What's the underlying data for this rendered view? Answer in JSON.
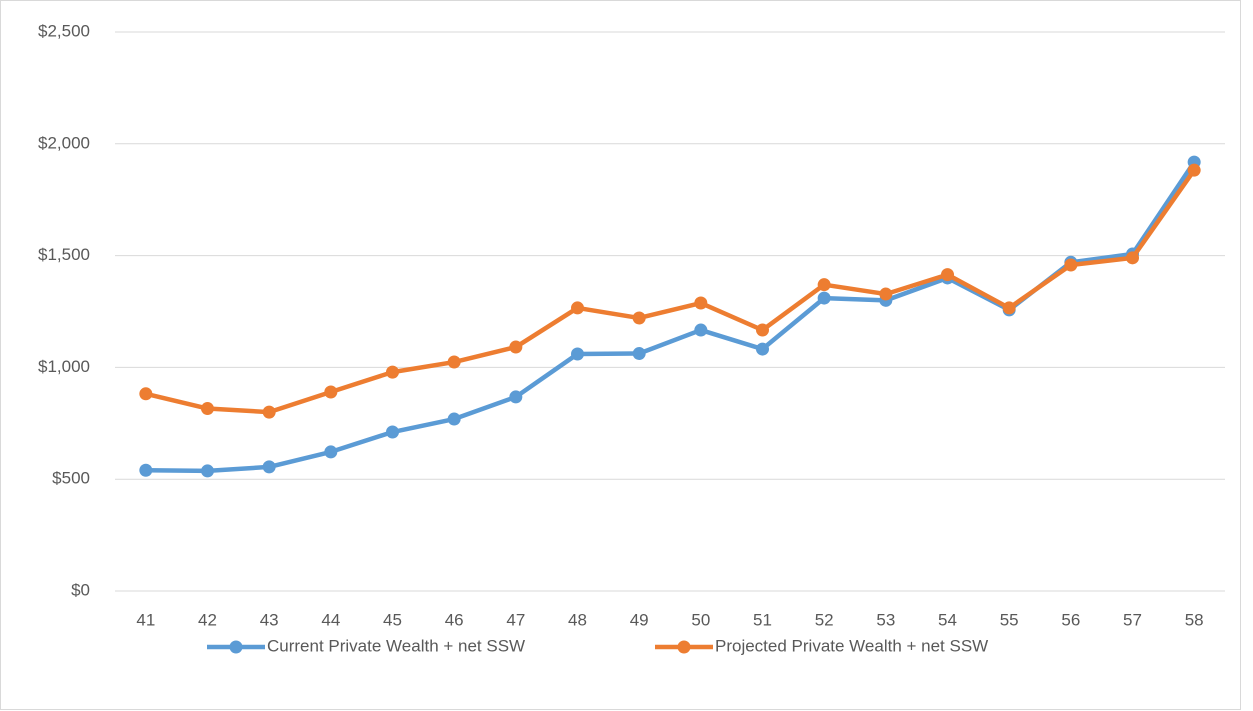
{
  "chart_data": {
    "type": "line",
    "categories": [
      41,
      42,
      43,
      44,
      45,
      46,
      47,
      48,
      49,
      50,
      51,
      52,
      53,
      54,
      55,
      56,
      57,
      58
    ],
    "series": [
      {
        "name": "Current Private Wealth + net SSW",
        "color": "#5b9bd5",
        "values": [
          540,
          537,
          555,
          622,
          711,
          769,
          868,
          1060,
          1062,
          1167,
          1082,
          1310,
          1300,
          1400,
          1257,
          1470,
          1507,
          1918
        ]
      },
      {
        "name": "Projected Private Wealth + net SSW",
        "color": "#ed7d31",
        "values": [
          882,
          816,
          800,
          890,
          979,
          1024,
          1091,
          1266,
          1221,
          1288,
          1167,
          1370,
          1328,
          1415,
          1266,
          1458,
          1490,
          1882
        ]
      }
    ],
    "ylim": [
      0,
      2500
    ],
    "yticks": [
      {
        "value": 0,
        "label": "$0"
      },
      {
        "value": 500,
        "label": "$500"
      },
      {
        "value": 1000,
        "label": "$1,000"
      },
      {
        "value": 1500,
        "label": "$1,500"
      },
      {
        "value": 2000,
        "label": "$2,000"
      },
      {
        "value": 2500,
        "label": "$2,500"
      }
    ],
    "grid": true,
    "legend": "bottom"
  }
}
